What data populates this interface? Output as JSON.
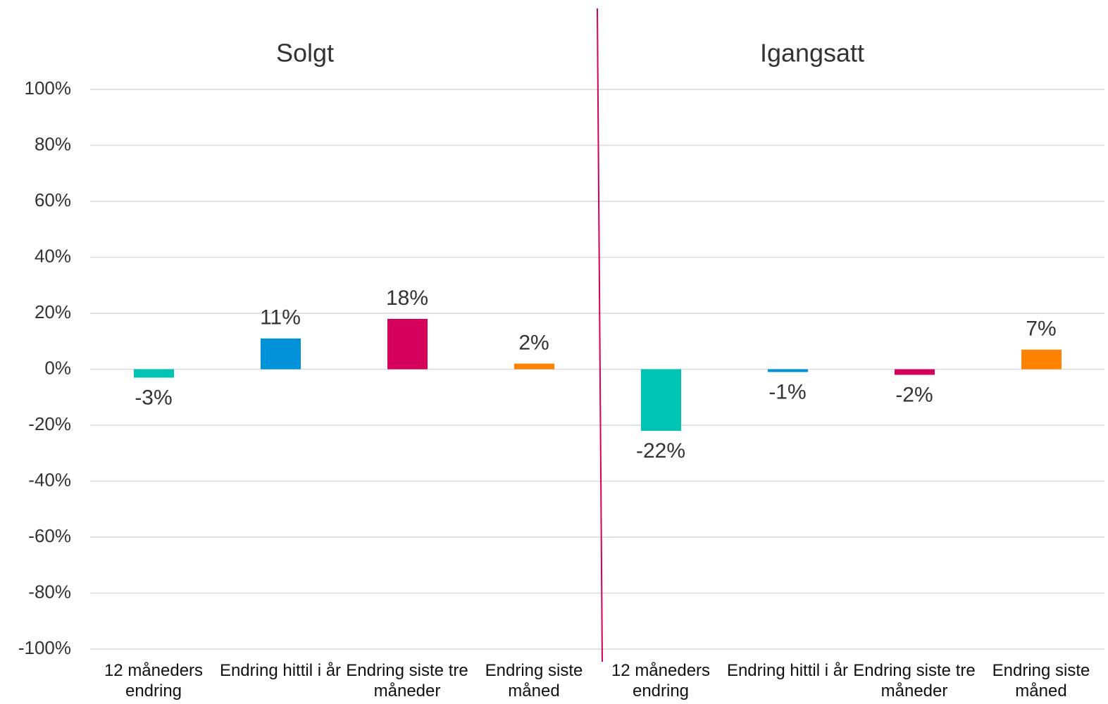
{
  "chart_data": {
    "type": "bar",
    "groups": [
      "Solgt",
      "Igangsatt"
    ],
    "categories": [
      "12 måneders endring",
      "Endring hittil i år",
      "Endring siste tre måneder",
      "Endring siste måned",
      "12 måneders endring",
      "Endring hittil i år",
      "Endring siste tre måneder",
      "Endring siste måned"
    ],
    "values": [
      -3,
      11,
      18,
      2,
      -22,
      -1,
      -2,
      7
    ],
    "value_labels": [
      "-3%",
      "11%",
      "18%",
      "2%",
      "-22%",
      "-1%",
      "-2%",
      "7%"
    ],
    "colors": [
      "#00c4b3",
      "#0091d8",
      "#d5005a",
      "#ff8200",
      "#00c4b3",
      "#0091d8",
      "#d5005a",
      "#ff8200"
    ],
    "ylim": [
      -100,
      100
    ],
    "yticks": [
      {
        "value": -100,
        "label": "-100%"
      },
      {
        "value": -80,
        "label": "-80%"
      },
      {
        "value": -60,
        "label": "-60%"
      },
      {
        "value": -40,
        "label": "-40%"
      },
      {
        "value": -20,
        "label": "-20%"
      },
      {
        "value": 0,
        "label": "0%"
      },
      {
        "value": 20,
        "label": "20%"
      },
      {
        "value": 40,
        "label": "40%"
      },
      {
        "value": 60,
        "label": "60%"
      },
      {
        "value": 80,
        "label": "80%"
      },
      {
        "value": 100,
        "label": "100%"
      }
    ],
    "grid": true
  }
}
